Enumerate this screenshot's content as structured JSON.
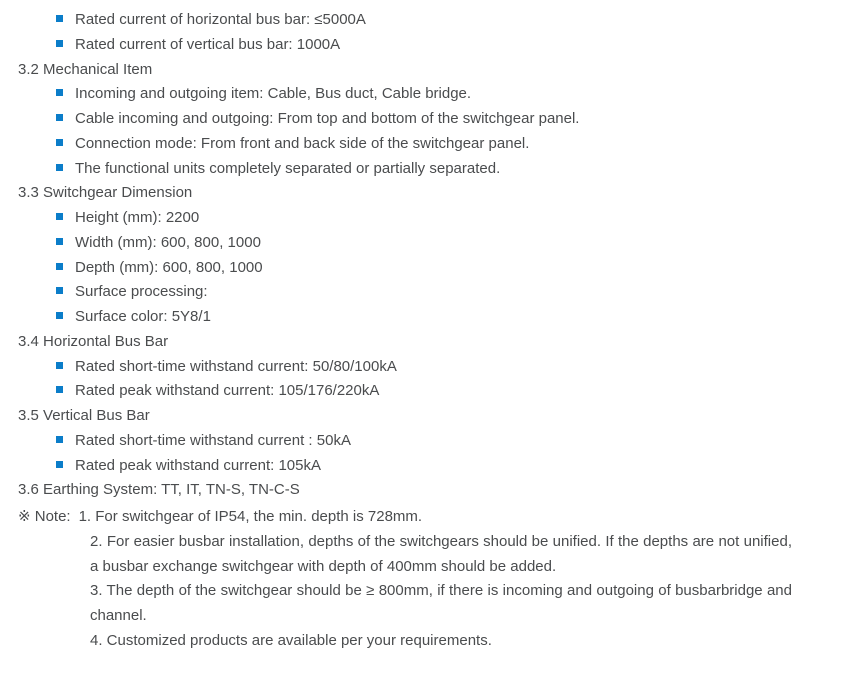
{
  "colors": {
    "bullet": "#0b7dc9",
    "text": "#4a4c4e",
    "background": "#ffffff"
  },
  "typography": {
    "font_family": "Arial, Helvetica, sans-serif",
    "font_size_pt": 11,
    "line_height": 1.65
  },
  "bullets_top": [
    "Rated current of horizontal bus bar: ≤5000A",
    "Rated current of vertical bus bar: 1000A"
  ],
  "sections": [
    {
      "heading": "3.2 Mechanical Item",
      "bullets": [
        "Incoming and outgoing item: Cable, Bus duct, Cable bridge.",
        "Cable incoming and outgoing: From top and bottom of the switchgear panel.",
        "Connection mode: From front and back side of the switchgear panel.",
        "The functional units completely separated or partially separated."
      ]
    },
    {
      "heading": "3.3 Switchgear Dimension",
      "bullets": [
        "Height (mm): 2200",
        "Width (mm): 600, 800, 1000",
        "Depth (mm): 600, 800, 1000",
        "Surface processing:",
        "Surface color: 5Y8/1"
      ]
    },
    {
      "heading": "3.4 Horizontal Bus Bar",
      "bullets": [
        "Rated short-time withstand current: 50/80/100kA",
        "Rated peak withstand current: 105/176/220kA"
      ]
    },
    {
      "heading": "3.5 Vertical Bus Bar",
      "bullets": [
        "Rated short-time withstand current : 50kA",
        "Rated peak withstand current: 105kA"
      ]
    },
    {
      "heading": "3.6 Earthing System: TT, IT, TN-S, TN-C-S",
      "bullets": []
    }
  ],
  "note": {
    "prefix": "※ Note: ",
    "items": [
      "1. For switchgear of IP54, the min. depth is 728mm.",
      "2. For easier busbar installation, depths of the switchgears should be unified. If the depths are not unified, a busbar exchange switchgear with depth of 400mm should be added.",
      "3. The depth of the switchgear should be ≥ 800mm, if there is incoming and outgoing of busbarbridge and channel.",
      "4. Customized products are available per your requirements."
    ]
  }
}
